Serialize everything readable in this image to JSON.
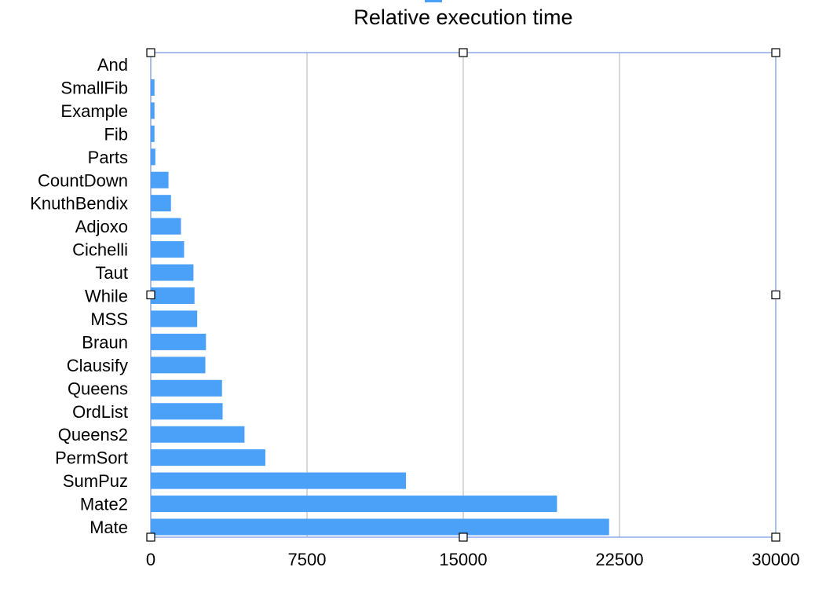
{
  "chart_data": {
    "type": "bar",
    "orientation": "horizontal",
    "title": "Relative execution time",
    "xlabel": "",
    "ylabel": "",
    "categories": [
      "And",
      "SmallFib",
      "Example",
      "Fib",
      "Parts",
      "CountDown",
      "KnuthBendix",
      "Adjoxo",
      "Cichelli",
      "Taut",
      "While",
      "MSS",
      "Braun",
      "Clausify",
      "Queens",
      "OrdList",
      "Queens2",
      "PermSort",
      "SumPuz",
      "Mate2",
      "Mate"
    ],
    "series": [
      {
        "values": [
          0,
          180,
          180,
          180,
          220,
          850,
          970,
          1450,
          1600,
          2050,
          2100,
          2230,
          2650,
          2620,
          3420,
          3450,
          4500,
          5500,
          12250,
          19500,
          22000
        ]
      }
    ],
    "xlim": [
      0,
      30000
    ],
    "xticks": [
      0,
      7500,
      15000,
      22500,
      30000
    ],
    "grid": "vertical",
    "legend": "top (single swatch, no text)",
    "selected": true,
    "colors": {
      "bar": "#4BA0F7",
      "grid": "#BDBDBD",
      "selection_frame": "#8EAAE8",
      "legend_swatch": "#4BA0F7"
    }
  }
}
